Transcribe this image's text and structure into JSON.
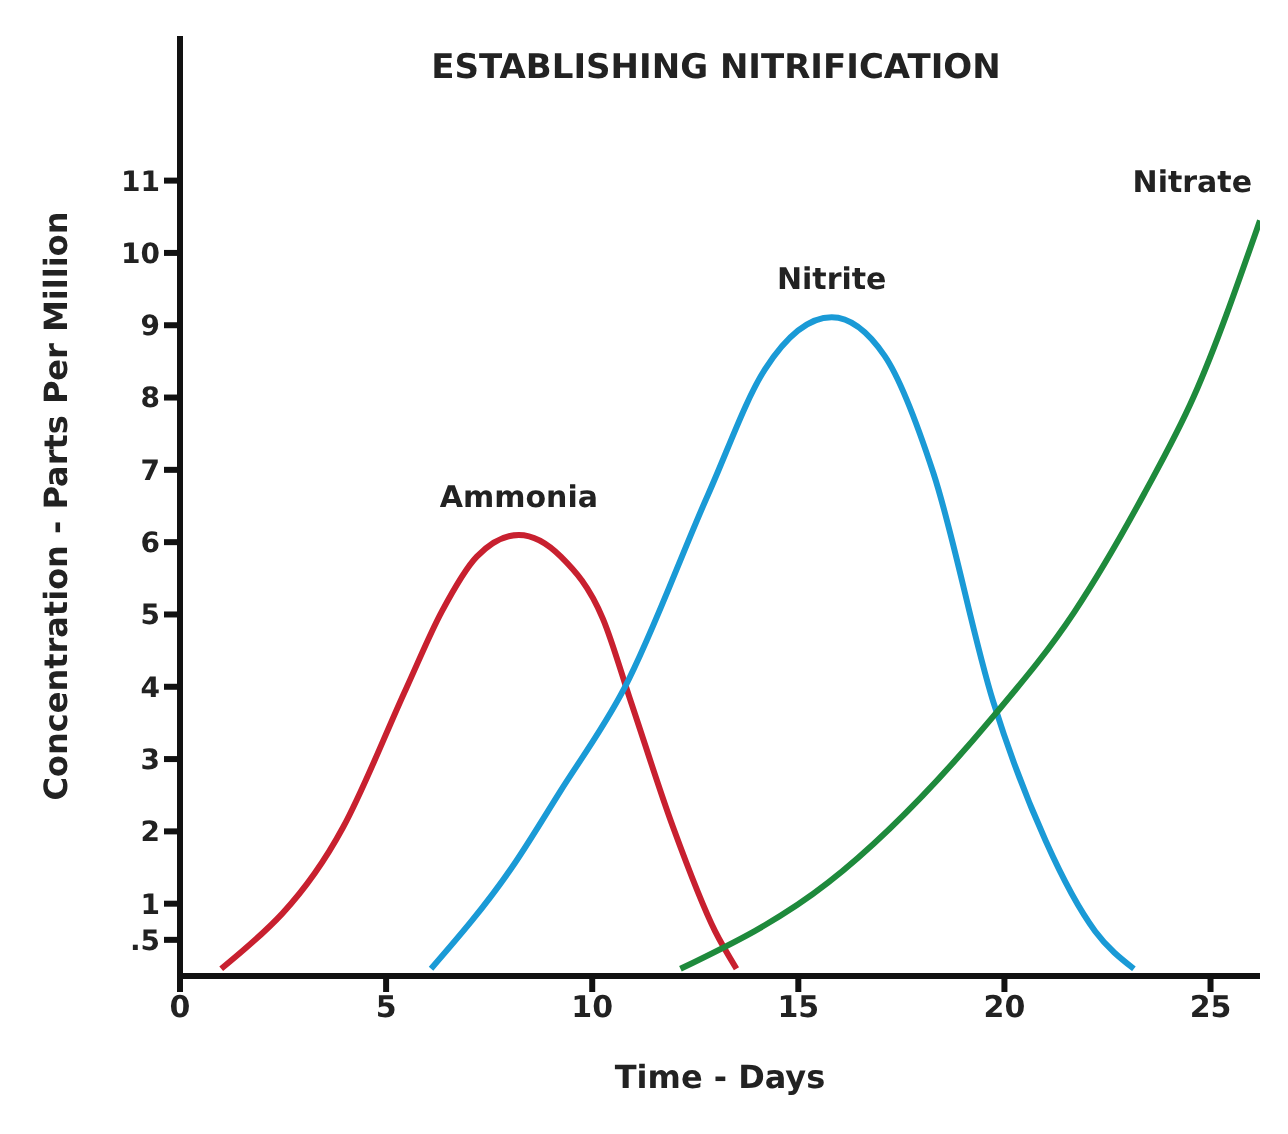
{
  "chart_data": {
    "type": "line",
    "title": "ESTABLISHING NITRIFICATION",
    "xlabel": "Time - Days",
    "ylabel": "Concentration - Parts Per Million",
    "xlim": [
      0,
      26.2
    ],
    "xticks": [
      0,
      5,
      10,
      15,
      20,
      25
    ],
    "ylim": [
      0,
      13
    ],
    "yticks": [
      {
        "value": 0.5,
        "label": ".5"
      },
      1,
      2,
      3,
      4,
      5,
      6,
      7,
      8,
      9,
      10,
      11
    ],
    "grid": false,
    "legend": false,
    "marker": "none",
    "line_style": "solid",
    "series": [
      {
        "name": "Ammonia",
        "color": "#c8202f",
        "x": [
          1.0,
          3.96,
          5.49,
          6.35,
          7.2,
          8.22,
          9.24,
          10.26,
          10.94,
          11.96,
          12.98,
          13.5
        ],
        "values": [
          0.1,
          2.06,
          3.98,
          5.04,
          5.8,
          6.1,
          5.8,
          4.94,
          3.79,
          2.06,
          0.62,
          0.1
        ]
      },
      {
        "name": "Nitrite",
        "color": "#1a9ad6",
        "x": [
          6.09,
          8.05,
          9.21,
          10.78,
          12.82,
          14.19,
          15.81,
          17.09,
          18.28,
          19.73,
          21.0,
          22.2,
          23.14
        ],
        "values": [
          0.1,
          1.5,
          2.54,
          3.98,
          6.67,
          8.39,
          9.11,
          8.58,
          6.95,
          3.79,
          1.87,
          0.62,
          0.1
        ]
      },
      {
        "name": "Nitrate",
        "color": "#1e8a3c",
        "x": [
          12.14,
          15.72,
          19.73,
          21.69,
          23.39,
          24.59,
          26.2
        ],
        "values": [
          0.1,
          1.29,
          3.59,
          5.03,
          6.67,
          8.01,
          10.45
        ]
      }
    ]
  }
}
